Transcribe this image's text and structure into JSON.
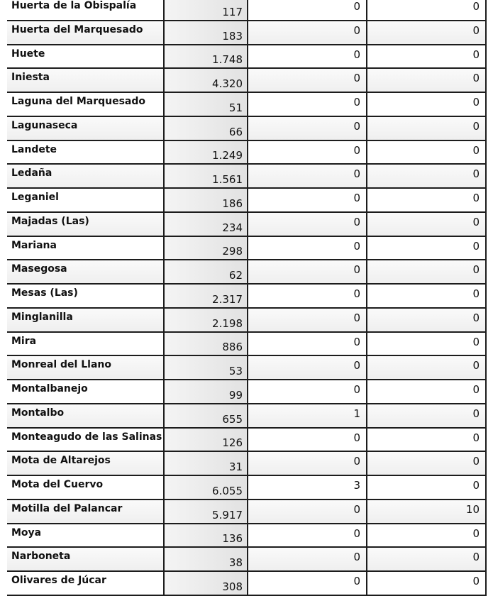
{
  "rows": [
    [
      "Huerta de la Obispalía",
      "117",
      "0",
      "0"
    ],
    [
      "Huerta del Marquesado",
      "183",
      "0",
      "0"
    ],
    [
      "Huete",
      "1.748",
      "0",
      "0"
    ],
    [
      "Iniesta",
      "4.320",
      "0",
      "0"
    ],
    [
      "Laguna del Marquesado",
      "51",
      "0",
      "0"
    ],
    [
      "Lagunaseca",
      "66",
      "0",
      "0"
    ],
    [
      "Landete",
      "1.249",
      "0",
      "0"
    ],
    [
      "Ledaña",
      "1.561",
      "0",
      "0"
    ],
    [
      "Leganiel",
      "186",
      "0",
      "0"
    ],
    [
      "Majadas (Las)",
      "234",
      "0",
      "0"
    ],
    [
      "Mariana",
      "298",
      "0",
      "0"
    ],
    [
      "Masegosa",
      "62",
      "0",
      "0"
    ],
    [
      "Mesas (Las)",
      "2.317",
      "0",
      "0"
    ],
    [
      "Minglanilla",
      "2.198",
      "0",
      "0"
    ],
    [
      "Mira",
      "886",
      "0",
      "0"
    ],
    [
      "Monreal del Llano",
      "53",
      "0",
      "0"
    ],
    [
      "Montalbanejo",
      "99",
      "0",
      "0"
    ],
    [
      "Montalbo",
      "655",
      "1",
      "0"
    ],
    [
      "Monteagudo de las Salinas",
      "126",
      "0",
      "0"
    ],
    [
      "Mota de Altarejos",
      "31",
      "0",
      "0"
    ],
    [
      "Mota del Cuervo",
      "6.055",
      "3",
      "0"
    ],
    [
      "Motilla del Palancar",
      "5.917",
      "0",
      "10"
    ],
    [
      "Moya",
      "136",
      "0",
      "0"
    ],
    [
      "Narboneta",
      "38",
      "0",
      "0"
    ],
    [
      "Olivares de Júcar",
      "308",
      "0",
      "0"
    ]
  ]
}
